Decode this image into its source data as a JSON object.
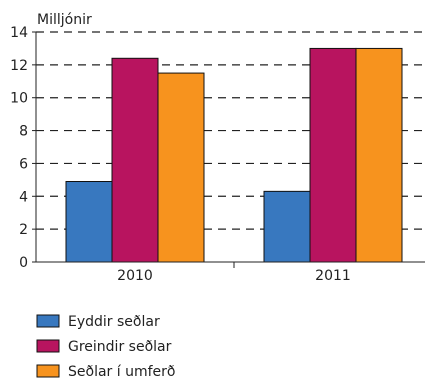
{
  "chart_data": {
    "type": "bar",
    "title": "",
    "ylabel": "Milljónir",
    "xlabel": "",
    "categories": [
      "2010",
      "2011"
    ],
    "series": [
      {
        "name": "Eyddir seðlar",
        "color": "#3878bf",
        "values": [
          4.9,
          4.3
        ]
      },
      {
        "name": "Greindir seðlar",
        "color": "#b8145f",
        "values": [
          12.4,
          13.0
        ]
      },
      {
        "name": "Seðlar í umferð",
        "color": "#f7931e",
        "values": [
          11.5,
          13.0
        ]
      }
    ],
    "ylim": [
      0,
      14
    ],
    "yticks": [
      "0",
      "2",
      "4",
      "6",
      "8",
      "10",
      "12",
      "14"
    ],
    "grid": "dashed horizontal",
    "legend_position": "bottom-left"
  }
}
